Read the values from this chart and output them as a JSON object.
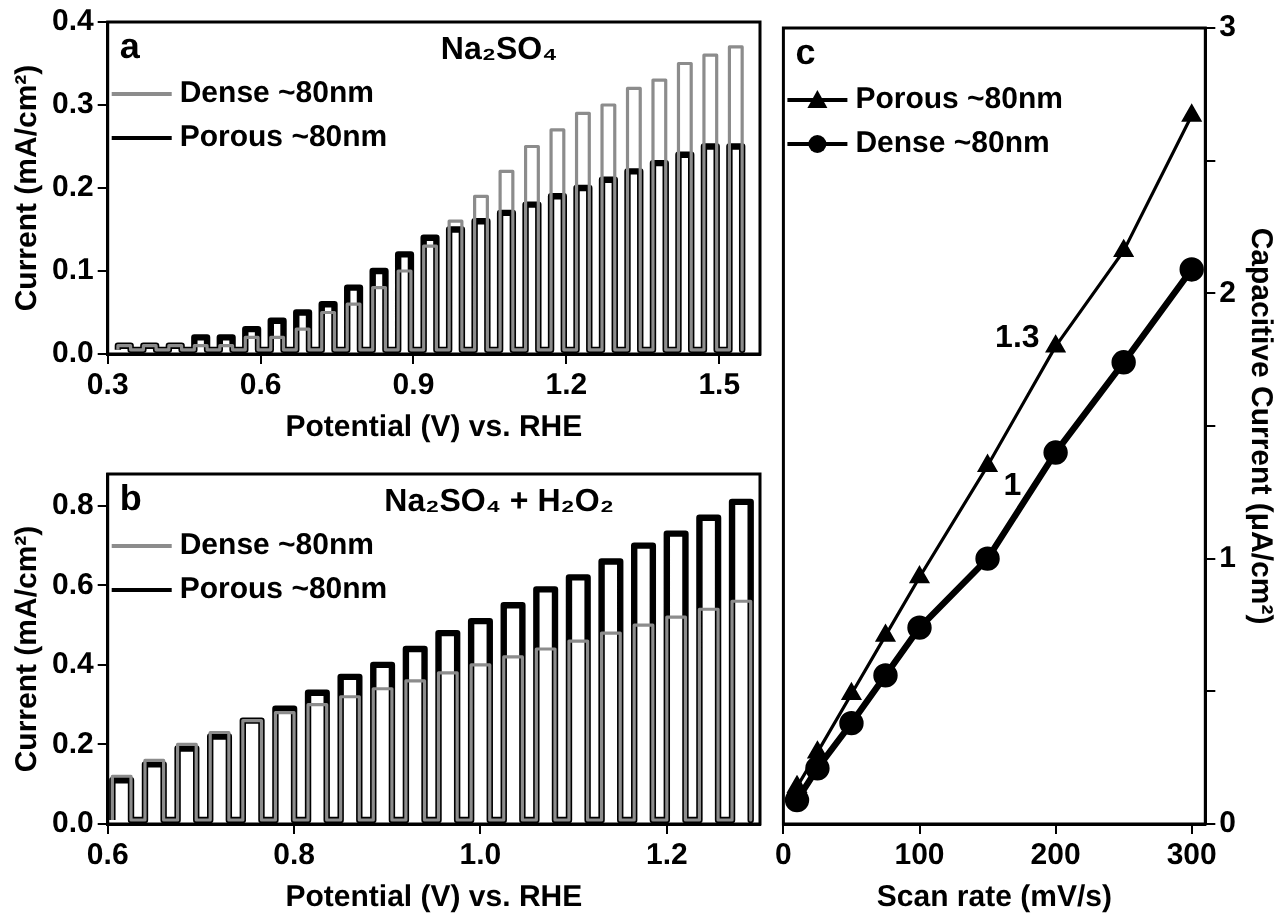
{
  "chart_data": [
    {
      "type": "line",
      "xlabel": "Potential (V) vs. RHE",
      "ylabel": "Current (mA/cm²)",
      "annotations": [
        "a",
        "Na₂SO₄"
      ],
      "legend": "top left",
      "xlim": [
        0.3,
        1.58
      ],
      "xticks": [
        0.3,
        0.6,
        0.9,
        1.2,
        1.5
      ],
      "ylim": [
        0,
        0.4
      ],
      "yticks": [
        {
          "value": 0,
          "label": "0.0"
        },
        0.1,
        0.2,
        0.3,
        0.4
      ],
      "x": [
        0.32,
        0.32,
        0.345,
        0.345,
        0.37,
        0.37,
        0.395,
        0.395,
        0.42,
        0.42,
        0.445,
        0.445,
        0.47,
        0.47,
        0.495,
        0.495,
        0.52,
        0.52,
        0.545,
        0.545,
        0.57,
        0.57,
        0.595,
        0.595,
        0.62,
        0.62,
        0.645,
        0.645,
        0.67,
        0.67,
        0.695,
        0.695,
        0.72,
        0.72,
        0.745,
        0.745,
        0.77,
        0.77,
        0.795,
        0.795,
        0.82,
        0.82,
        0.845,
        0.845,
        0.87,
        0.87,
        0.895,
        0.895,
        0.92,
        0.92,
        0.945,
        0.945,
        0.97,
        0.97,
        0.995,
        0.995,
        1.02,
        1.02,
        1.045,
        1.045,
        1.07,
        1.07,
        1.095,
        1.095,
        1.12,
        1.12,
        1.145,
        1.145,
        1.17,
        1.17,
        1.195,
        1.195,
        1.22,
        1.22,
        1.245,
        1.245,
        1.27,
        1.27,
        1.295,
        1.295,
        1.32,
        1.32,
        1.345,
        1.345,
        1.37,
        1.37,
        1.395,
        1.395,
        1.42,
        1.42,
        1.445,
        1.445,
        1.47,
        1.47,
        1.495,
        1.495,
        1.52,
        1.52,
        1.545,
        1.545
      ],
      "series": [
        {
          "name": "Dense ~80nm",
          "color": "#8c8c8c",
          "values": [
            0.005,
            0.01,
            0.01,
            0.005,
            0.005,
            0.01,
            0.01,
            0.005,
            0.005,
            0.01,
            0.01,
            0.005,
            0.005,
            0.01,
            0.01,
            0.005,
            0.005,
            0.01,
            0.01,
            0.005,
            0.005,
            0.02,
            0.02,
            0.005,
            0.005,
            0.02,
            0.02,
            0.005,
            0.005,
            0.03,
            0.03,
            0.005,
            0.005,
            0.05,
            0.05,
            0.005,
            0.005,
            0.06,
            0.06,
            0.005,
            0.005,
            0.08,
            0.08,
            0.005,
            0.005,
            0.1,
            0.1,
            0.005,
            0.005,
            0.13,
            0.13,
            0.005,
            0.005,
            0.16,
            0.16,
            0.005,
            0.005,
            0.19,
            0.19,
            0.005,
            0.005,
            0.22,
            0.22,
            0.005,
            0.005,
            0.25,
            0.25,
            0.005,
            0.005,
            0.27,
            0.27,
            0.005,
            0.005,
            0.29,
            0.29,
            0.005,
            0.005,
            0.3,
            0.3,
            0.005,
            0.005,
            0.32,
            0.32,
            0.005,
            0.005,
            0.33,
            0.33,
            0.005,
            0.005,
            0.35,
            0.35,
            0.005,
            0.005,
            0.36,
            0.36,
            0.005,
            0.005,
            0.37,
            0.37,
            0.005
          ]
        },
        {
          "name": "Porous ~80nm",
          "color": "#000000",
          "values": [
            0.005,
            0.01,
            0.01,
            0.005,
            0.005,
            0.01,
            0.01,
            0.005,
            0.005,
            0.01,
            0.01,
            0.005,
            0.005,
            0.02,
            0.02,
            0.005,
            0.005,
            0.02,
            0.02,
            0.005,
            0.005,
            0.03,
            0.03,
            0.005,
            0.005,
            0.04,
            0.04,
            0.005,
            0.005,
            0.05,
            0.05,
            0.005,
            0.005,
            0.06,
            0.06,
            0.005,
            0.005,
            0.08,
            0.08,
            0.005,
            0.005,
            0.1,
            0.1,
            0.005,
            0.005,
            0.12,
            0.12,
            0.005,
            0.005,
            0.14,
            0.14,
            0.005,
            0.005,
            0.15,
            0.15,
            0.005,
            0.005,
            0.16,
            0.16,
            0.005,
            0.005,
            0.17,
            0.17,
            0.005,
            0.005,
            0.18,
            0.18,
            0.005,
            0.005,
            0.19,
            0.19,
            0.005,
            0.005,
            0.2,
            0.2,
            0.005,
            0.005,
            0.21,
            0.21,
            0.005,
            0.005,
            0.22,
            0.22,
            0.005,
            0.005,
            0.23,
            0.23,
            0.005,
            0.005,
            0.24,
            0.24,
            0.005,
            0.005,
            0.25,
            0.25,
            0.005,
            0.005,
            0.25,
            0.25,
            0.005
          ]
        }
      ]
    },
    {
      "type": "line",
      "xlabel": "Potential (V) vs. RHE",
      "ylabel": "Current (mA/cm²)",
      "annotations": [
        "b",
        "Na₂SO₄ + H₂O₂"
      ],
      "legend": "top left",
      "xlim": [
        0.6,
        1.3
      ],
      "xticks": [
        0.6,
        0.8,
        {
          "value": 1,
          "label": "1.0"
        },
        1.2
      ],
      "ylim": [
        0,
        0.88
      ],
      "yticks": [
        {
          "value": 0,
          "label": "0.0"
        },
        0.2,
        0.4,
        0.6,
        0.8
      ],
      "x": [
        0.605,
        0.605,
        0.625,
        0.625,
        0.64,
        0.64,
        0.66,
        0.66,
        0.675,
        0.675,
        0.695,
        0.695,
        0.71,
        0.71,
        0.73,
        0.73,
        0.745,
        0.745,
        0.765,
        0.765,
        0.78,
        0.78,
        0.8,
        0.8,
        0.815,
        0.815,
        0.835,
        0.835,
        0.85,
        0.85,
        0.87,
        0.87,
        0.885,
        0.885,
        0.905,
        0.905,
        0.92,
        0.92,
        0.94,
        0.94,
        0.955,
        0.955,
        0.975,
        0.975,
        0.99,
        0.99,
        1.01,
        1.01,
        1.025,
        1.025,
        1.045,
        1.045,
        1.06,
        1.06,
        1.08,
        1.08,
        1.095,
        1.095,
        1.115,
        1.115,
        1.13,
        1.13,
        1.15,
        1.15,
        1.165,
        1.165,
        1.185,
        1.185,
        1.2,
        1.2,
        1.22,
        1.22,
        1.235,
        1.235,
        1.255,
        1.255,
        1.27,
        1.27,
        1.29,
        1.29
      ],
      "series": [
        {
          "name": "Dense ~80nm",
          "color": "#8c8c8c",
          "values": [
            0.01,
            0.12,
            0.12,
            0.01,
            0.01,
            0.16,
            0.16,
            0.01,
            0.01,
            0.2,
            0.2,
            0.01,
            0.01,
            0.23,
            0.23,
            0.01,
            0.01,
            0.26,
            0.26,
            0.01,
            0.01,
            0.28,
            0.28,
            0.01,
            0.01,
            0.3,
            0.3,
            0.01,
            0.01,
            0.32,
            0.32,
            0.01,
            0.01,
            0.34,
            0.34,
            0.01,
            0.01,
            0.36,
            0.36,
            0.01,
            0.01,
            0.38,
            0.38,
            0.01,
            0.01,
            0.4,
            0.4,
            0.01,
            0.01,
            0.42,
            0.42,
            0.01,
            0.01,
            0.44,
            0.44,
            0.01,
            0.01,
            0.46,
            0.46,
            0.01,
            0.01,
            0.48,
            0.48,
            0.01,
            0.01,
            0.5,
            0.5,
            0.01,
            0.01,
            0.52,
            0.52,
            0.01,
            0.01,
            0.54,
            0.54,
            0.01,
            0.01,
            0.56,
            0.56,
            0.01
          ]
        },
        {
          "name": "Porous ~80nm",
          "color": "#000000",
          "values": [
            0.01,
            0.11,
            0.11,
            0.01,
            0.01,
            0.15,
            0.15,
            0.01,
            0.01,
            0.19,
            0.19,
            0.01,
            0.01,
            0.22,
            0.22,
            0.01,
            0.01,
            0.26,
            0.26,
            0.01,
            0.01,
            0.29,
            0.29,
            0.01,
            0.01,
            0.33,
            0.33,
            0.01,
            0.01,
            0.37,
            0.37,
            0.01,
            0.01,
            0.4,
            0.4,
            0.01,
            0.01,
            0.44,
            0.44,
            0.01,
            0.01,
            0.48,
            0.48,
            0.01,
            0.01,
            0.51,
            0.51,
            0.01,
            0.01,
            0.55,
            0.55,
            0.01,
            0.01,
            0.59,
            0.59,
            0.01,
            0.01,
            0.62,
            0.62,
            0.01,
            0.01,
            0.66,
            0.66,
            0.01,
            0.01,
            0.7,
            0.7,
            0.01,
            0.01,
            0.73,
            0.73,
            0.01,
            0.01,
            0.77,
            0.77,
            0.01,
            0.01,
            0.81,
            0.81,
            0.01
          ]
        }
      ]
    },
    {
      "type": "line",
      "xlabel": "Scan rate (mV/s)",
      "ylabel": "Capacitive Current (μA/cm²)",
      "annotations": [
        "c",
        {
          "text": "1.3",
          "x": 200,
          "y": 1.8
        },
        {
          "text": "1",
          "x": 150,
          "y": 1.35
        }
      ],
      "legend": "top left",
      "xlim": [
        0,
        310
      ],
      "xticks": [
        0,
        100,
        200,
        300
      ],
      "ylim": [
        0,
        3
      ],
      "yticks": [
        0,
        {
          "value": 0.5,
          "label": null
        },
        1,
        {
          "value": 1.5,
          "label": null
        },
        2,
        {
          "value": 2.5,
          "label": null
        },
        3
      ],
      "x": [
        10,
        25,
        50,
        75,
        100,
        150,
        200,
        250,
        300
      ],
      "series": [
        {
          "name": "Porous ~80nm",
          "color": "#000000",
          "marker": "triangle",
          "values": [
            0.14,
            0.27,
            0.49,
            0.71,
            0.93,
            1.35,
            1.8,
            2.16,
            2.67
          ]
        },
        {
          "name": "Dense ~80nm",
          "color": "#000000",
          "marker": "circle",
          "values": [
            0.09,
            0.21,
            0.38,
            0.56,
            0.74,
            1.0,
            1.4,
            1.74,
            2.09
          ]
        }
      ]
    }
  ]
}
